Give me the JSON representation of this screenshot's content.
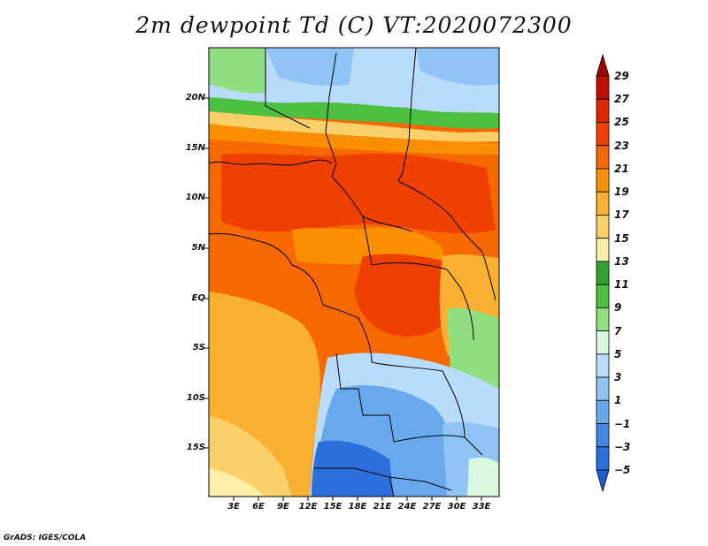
{
  "title": "2m dewpoint Td (C) VT:2020072300",
  "credit": "GrADS: IGES/COLA",
  "map": {
    "lat_labels": [
      "20N",
      "15N",
      "10N",
      "5N",
      "EQ",
      "5S",
      "10S",
      "15S"
    ],
    "lon_labels": [
      "3E",
      "6E",
      "9E",
      "12E",
      "15E",
      "18E",
      "21E",
      "24E",
      "27E",
      "30E",
      "33E"
    ],
    "variable": "2m dewpoint",
    "units": "C"
  },
  "colorbar": {
    "labels": [
      "29",
      "27",
      "25",
      "23",
      "21",
      "19",
      "17",
      "15",
      "13",
      "11",
      "9",
      "7",
      "5",
      "3",
      "1",
      "-1",
      "-3",
      "-5"
    ],
    "colors": [
      "#a00000",
      "#c01000",
      "#dc2800",
      "#f04000",
      "#f86800",
      "#fa9000",
      "#fab030",
      "#fcd068",
      "#fcf0a8",
      "#30a030",
      "#4cc040",
      "#90e080",
      "#d8f8e0",
      "#b8dcfa",
      "#90c4f4",
      "#68a8ec",
      "#4488e4",
      "#2c70dc",
      "#1c5cd0"
    ]
  }
}
